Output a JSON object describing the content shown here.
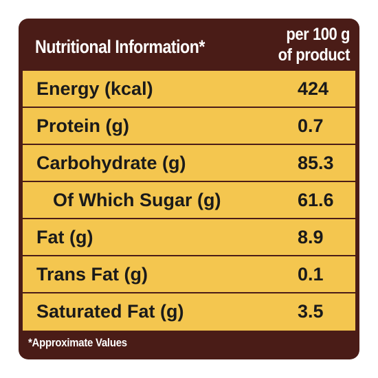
{
  "header": {
    "title": "Nutritional Information*",
    "per_line1": "per 100 g",
    "per_line2": "of product"
  },
  "rows": [
    {
      "label": "Energy (kcal)",
      "value": "424"
    },
    {
      "label": "Protein (g)",
      "value": "0.7"
    },
    {
      "label": "Carbohydrate (g)",
      "value": "85.3"
    },
    {
      "label": "Of Which Sugar (g)",
      "value": "61.6"
    },
    {
      "label": "Fat (g)",
      "value": "8.9"
    },
    {
      "label": "Trans Fat (g)",
      "value": "0.1"
    },
    {
      "label": "Saturated Fat (g)",
      "value": "3.5"
    }
  ],
  "footnote": "*Approximate Values",
  "colors": {
    "panel": "#4a1c17",
    "table_fill": "#f4c64f",
    "header_text": "#ffffff",
    "body_text": "#1a1a1a"
  }
}
